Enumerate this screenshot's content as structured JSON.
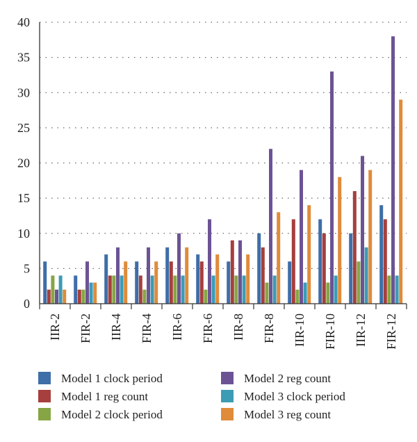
{
  "chart_data": {
    "type": "bar",
    "title": "",
    "xlabel": "",
    "ylabel": "",
    "ylim": [
      0,
      40
    ],
    "yticks": [
      0,
      5,
      10,
      15,
      20,
      25,
      30,
      35,
      40
    ],
    "grid": true,
    "legend_position": "bottom",
    "categories": [
      "IIR-2",
      "FIR-2",
      "IIR-4",
      "FIR-4",
      "IIR-6",
      "FIR-6",
      "IIR-8",
      "FIR-8",
      "IIR-10",
      "FIR-10",
      "IIR-12",
      "FIR-12"
    ],
    "series": [
      {
        "name": "Model 1 clock period",
        "color": "#3f6ea8",
        "values": [
          6,
          4,
          7,
          6,
          8,
          7,
          6,
          10,
          6,
          12,
          10,
          14
        ]
      },
      {
        "name": "Model 1 reg count",
        "color": "#a63f3d",
        "values": [
          2,
          2,
          4,
          4,
          6,
          6,
          9,
          8,
          12,
          10,
          16,
          12
        ]
      },
      {
        "name": "Model 2 clock period",
        "color": "#86a544",
        "values": [
          4,
          2,
          4,
          2,
          4,
          2,
          4,
          3,
          2,
          3,
          6,
          4
        ]
      },
      {
        "name": "Model 2 reg count",
        "color": "#6c5394",
        "values": [
          2,
          6,
          8,
          8,
          10,
          12,
          9,
          22,
          19,
          33,
          21,
          38
        ]
      },
      {
        "name": "Model 3 clock period",
        "color": "#3c9bb5",
        "values": [
          4,
          3,
          4,
          4,
          4,
          4,
          4,
          4,
          3,
          4,
          8,
          4
        ]
      },
      {
        "name": "Model 3 reg count",
        "color": "#e08b3a",
        "values": [
          2,
          3,
          6,
          6,
          8,
          7,
          7,
          13,
          14,
          18,
          19,
          29
        ]
      }
    ]
  }
}
